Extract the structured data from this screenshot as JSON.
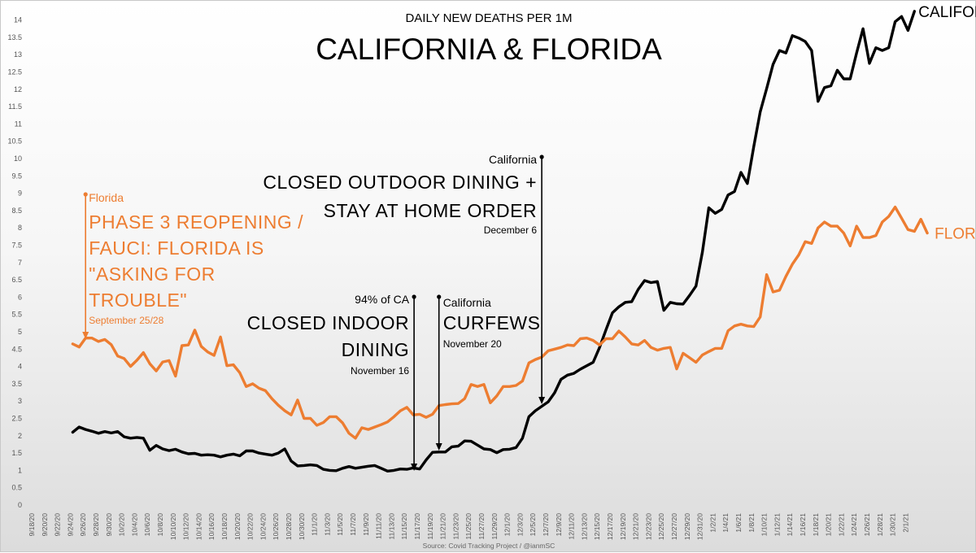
{
  "colors": {
    "california": "#000000",
    "florida": "#ed7d31"
  },
  "chart_data": {
    "type": "line",
    "title": "CALIFORNIA & FLORIDA",
    "subtitle": "DAILY NEW DEATHS PER 1M",
    "source": "Source: Covid Tracking Project / @ianmSC",
    "grid": false,
    "ylim": [
      0,
      14
    ],
    "yticks": [
      "0",
      "0.5",
      "1",
      "1.5",
      "2",
      "2.5",
      "3",
      "3.5",
      "4",
      "4.5",
      "5",
      "5.5",
      "6",
      "6.5",
      "7",
      "7.5",
      "8",
      "8.5",
      "9",
      "9.5",
      "10",
      "10.5",
      "11",
      "11.5",
      "12",
      "12.5",
      "13",
      "13.5",
      "14"
    ],
    "x_tick_labels": [
      "9/18/20",
      "9/20/20",
      "9/22/20",
      "9/24/20",
      "9/26/20",
      "9/28/20",
      "9/30/20",
      "10/2/20",
      "10/4/20",
      "10/6/20",
      "10/8/20",
      "10/10/20",
      "10/12/20",
      "10/14/20",
      "10/16/20",
      "10/18/20",
      "10/20/20",
      "10/22/20",
      "10/24/20",
      "10/26/20",
      "10/28/20",
      "10/30/20",
      "11/1/20",
      "11/3/20",
      "11/5/20",
      "11/7/20",
      "11/9/20",
      "11/11/20",
      "11/13/20",
      "11/15/20",
      "11/17/20",
      "11/19/20",
      "11/21/20",
      "11/23/20",
      "11/25/20",
      "11/27/20",
      "11/29/20",
      "12/1/20",
      "12/3/20",
      "12/5/20",
      "12/7/20",
      "12/9/20",
      "12/11/20",
      "12/13/20",
      "12/15/20",
      "12/17/20",
      "12/19/20",
      "12/21/20",
      "12/23/20",
      "12/25/20",
      "12/27/20",
      "12/29/20",
      "12/31/20",
      "1/2/21",
      "1/4/21",
      "1/6/21",
      "1/8/21",
      "1/10/21",
      "1/12/21",
      "1/14/21",
      "1/16/21",
      "1/18/21",
      "1/20/21",
      "1/22/21",
      "1/24/21",
      "1/26/21",
      "1/28/21",
      "1/30/21",
      "2/1/21"
    ],
    "series": [
      {
        "name": "CALIFORNIA",
        "start_date": "9/24/20",
        "values": [
          2.1,
          2.25,
          2.18,
          2.13,
          2.07,
          2.12,
          2.08,
          2.12,
          1.97,
          1.93,
          1.95,
          1.93,
          1.58,
          1.72,
          1.62,
          1.57,
          1.61,
          1.53,
          1.48,
          1.49,
          1.44,
          1.45,
          1.44,
          1.39,
          1.44,
          1.47,
          1.42,
          1.56,
          1.56,
          1.5,
          1.47,
          1.44,
          1.5,
          1.62,
          1.27,
          1.13,
          1.14,
          1.16,
          1.14,
          1.03,
          1.0,
          0.99,
          1.06,
          1.11,
          1.06,
          1.09,
          1.12,
          1.14,
          1.06,
          0.98,
          1.0,
          1.04,
          1.03,
          1.07,
          1.04,
          1.3,
          1.52,
          1.53,
          1.53,
          1.68,
          1.7,
          1.85,
          1.84,
          1.73,
          1.62,
          1.6,
          1.51,
          1.6,
          1.61,
          1.66,
          1.93,
          2.55,
          2.72,
          2.85,
          2.98,
          3.24,
          3.63,
          3.75,
          3.8,
          3.92,
          4.02,
          4.12,
          4.55,
          5.06,
          5.55,
          5.72,
          5.85,
          5.87,
          6.22,
          6.48,
          6.42,
          6.45,
          5.62,
          5.85,
          5.81,
          5.8,
          6.05,
          6.32,
          7.3,
          8.58,
          8.42,
          8.53,
          8.95,
          9.05,
          9.6,
          9.28,
          10.35,
          11.35,
          12.02,
          12.72,
          13.12,
          13.05,
          13.55,
          13.48,
          13.38,
          13.12,
          11.65,
          12.05,
          12.1,
          12.55,
          12.3,
          12.3,
          13.05,
          13.75,
          12.75,
          13.2,
          13.12,
          13.2,
          13.95,
          14.1,
          13.7,
          14.25
        ]
      },
      {
        "name": "FLORIDA",
        "start_date": "9/24/20",
        "values": [
          4.65,
          4.56,
          4.82,
          4.82,
          4.72,
          4.78,
          4.63,
          4.3,
          4.23,
          4.0,
          4.18,
          4.4,
          4.08,
          3.87,
          4.13,
          4.17,
          3.72,
          4.6,
          4.62,
          5.05,
          4.58,
          4.42,
          4.32,
          4.85,
          4.02,
          4.05,
          3.82,
          3.42,
          3.5,
          3.37,
          3.3,
          3.07,
          2.88,
          2.72,
          2.6,
          3.03,
          2.5,
          2.5,
          2.3,
          2.38,
          2.55,
          2.55,
          2.37,
          2.07,
          1.93,
          2.23,
          2.18,
          2.25,
          2.32,
          2.4,
          2.55,
          2.72,
          2.82,
          2.6,
          2.62,
          2.53,
          2.62,
          2.87,
          2.9,
          2.92,
          2.93,
          3.07,
          3.48,
          3.42,
          3.48,
          2.95,
          3.15,
          3.42,
          3.42,
          3.45,
          3.58,
          4.1,
          4.2,
          4.27,
          4.45,
          4.5,
          4.55,
          4.62,
          4.6,
          4.8,
          4.82,
          4.75,
          4.62,
          4.8,
          4.8,
          5.02,
          4.85,
          4.65,
          4.62,
          4.75,
          4.55,
          4.47,
          4.52,
          4.55,
          3.93,
          4.38,
          4.25,
          4.12,
          4.33,
          4.43,
          4.52,
          4.52,
          5.03,
          5.17,
          5.22,
          5.17,
          5.15,
          5.43,
          6.65,
          6.15,
          6.2,
          6.6,
          6.95,
          7.22,
          7.6,
          7.55,
          8.0,
          8.17,
          8.05,
          8.05,
          7.85,
          7.48,
          8.05,
          7.72,
          7.72,
          7.78,
          8.17,
          8.33,
          8.6,
          8.28,
          7.95,
          7.9,
          8.25,
          7.85
        ]
      }
    ],
    "series_labels": {
      "california": "CALIFORNIA",
      "florida": "FLORIDA"
    },
    "annotations": [
      {
        "id": "florida-phase3",
        "date": "9/26/20",
        "color": "#ed7d31",
        "small": "Florida",
        "big": [
          "PHASE 3 REOPENING /",
          "FAUCI: FLORIDA IS",
          "\"ASKING FOR",
          "TROUBLE\""
        ],
        "footnote": "September 25/28"
      },
      {
        "id": "ca-indoor-dining",
        "date": "11/16/20",
        "color": "#000000",
        "small": "94% of CA",
        "big": [
          "CLOSED INDOOR",
          "DINING"
        ],
        "footnote": "November 16"
      },
      {
        "id": "ca-curfews",
        "date": "11/20/20",
        "color": "#000000",
        "small": "California",
        "big": [
          "CURFEWS"
        ],
        "footnote": "November 20"
      },
      {
        "id": "ca-outdoor-dining",
        "date": "12/6/20",
        "color": "#000000",
        "small": "California",
        "big": [
          "CLOSED OUTDOOR DINING +",
          "STAY AT HOME ORDER"
        ],
        "footnote": "December 6"
      }
    ]
  }
}
